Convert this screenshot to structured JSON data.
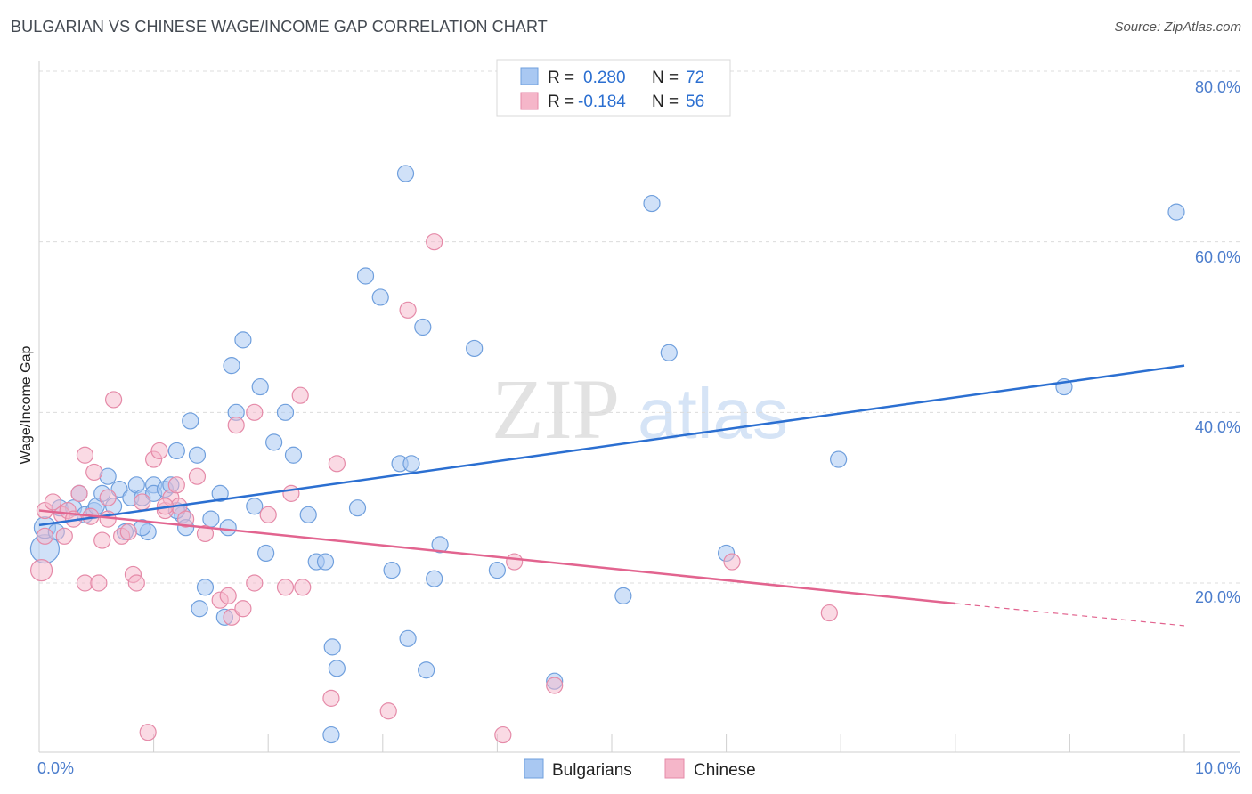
{
  "title": "BULGARIAN VS CHINESE WAGE/INCOME GAP CORRELATION CHART",
  "source": "Source: ZipAtlas.com",
  "watermark": {
    "zip": "ZIP",
    "atlas": "atlas"
  },
  "colors": {
    "blue_fill": "#a9c8f2",
    "blue_stroke": "#6f9fdd",
    "blue_line": "#2b6fd1",
    "pink_fill": "#f5b6c9",
    "pink_stroke": "#e58aa8",
    "pink_line": "#e2648f",
    "tick_text": "#4a7ccc"
  },
  "legend": [
    {
      "r_label": "R =",
      "r_value": "0.280",
      "n_label": "N =",
      "n_value": "72"
    },
    {
      "r_label": "R =",
      "r_value": "-0.184",
      "n_label": "N =",
      "n_value": "56"
    }
  ],
  "chart_data": {
    "type": "scatter",
    "title": "BULGARIAN VS CHINESE WAGE/INCOME GAP CORRELATION CHART",
    "xlabel": "",
    "ylabel": "Wage/Income Gap",
    "xlim": [
      0,
      10
    ],
    "ylim": [
      0,
      80
    ],
    "x_tick_labels": [
      "0.0%",
      "10.0%"
    ],
    "y_tick_labels": [
      "20.0%",
      "40.0%",
      "60.0%",
      "80.0%"
    ],
    "y_ticks": [
      20,
      40,
      60,
      80
    ],
    "series": [
      {
        "name": "Bulgarians",
        "trend": {
          "x": [
            0,
            10
          ],
          "y": [
            26.8,
            45.5
          ]
        },
        "points": [
          [
            0.05,
            24
          ],
          [
            0.05,
            26.5
          ],
          [
            0.15,
            26
          ],
          [
            0.18,
            28.8
          ],
          [
            0.3,
            28.8
          ],
          [
            0.35,
            30.5
          ],
          [
            0.4,
            28
          ],
          [
            0.48,
            28.5
          ],
          [
            0.5,
            29
          ],
          [
            0.55,
            30.5
          ],
          [
            0.65,
            29
          ],
          [
            0.6,
            32.5
          ],
          [
            0.7,
            31
          ],
          [
            0.75,
            26
          ],
          [
            0.8,
            30
          ],
          [
            0.85,
            31.5
          ],
          [
            0.9,
            30
          ],
          [
            0.95,
            26
          ],
          [
            1.0,
            31.5
          ],
          [
            1.0,
            30.5
          ],
          [
            1.1,
            31
          ],
          [
            1.15,
            31.5
          ],
          [
            1.2,
            35.5
          ],
          [
            1.25,
            28
          ],
          [
            1.28,
            26.5
          ],
          [
            1.32,
            39
          ],
          [
            1.38,
            35
          ],
          [
            1.4,
            17
          ],
          [
            1.45,
            19.5
          ],
          [
            1.5,
            27.5
          ],
          [
            1.58,
            30.5
          ],
          [
            1.62,
            16
          ],
          [
            1.65,
            26.5
          ],
          [
            1.68,
            45.5
          ],
          [
            1.72,
            40
          ],
          [
            1.78,
            48.5
          ],
          [
            1.88,
            29
          ],
          [
            1.93,
            43
          ],
          [
            1.98,
            23.5
          ],
          [
            2.05,
            36.5
          ],
          [
            2.15,
            40
          ],
          [
            2.22,
            35
          ],
          [
            2.35,
            28
          ],
          [
            2.42,
            22.5
          ],
          [
            2.5,
            22.5
          ],
          [
            2.56,
            12.5
          ],
          [
            2.6,
            10
          ],
          [
            2.55,
            2.2
          ],
          [
            2.78,
            28.8
          ],
          [
            2.85,
            56
          ],
          [
            2.98,
            53.5
          ],
          [
            3.08,
            21.5
          ],
          [
            3.15,
            34
          ],
          [
            3.2,
            68
          ],
          [
            3.22,
            13.5
          ],
          [
            3.25,
            34
          ],
          [
            3.35,
            50
          ],
          [
            3.38,
            9.8
          ],
          [
            3.45,
            20.5
          ],
          [
            3.5,
            24.5
          ],
          [
            3.8,
            47.5
          ],
          [
            4.0,
            21.5
          ],
          [
            4.5,
            8.5
          ],
          [
            5.1,
            18.5
          ],
          [
            5.35,
            64.5
          ],
          [
            5.5,
            47
          ],
          [
            6.0,
            23.5
          ],
          [
            6.98,
            34.5
          ],
          [
            8.95,
            43
          ],
          [
            9.93,
            63.5
          ],
          [
            0.9,
            26.5
          ],
          [
            1.2,
            28.5
          ]
        ]
      },
      {
        "name": "Chinese",
        "trend": {
          "x": [
            0,
            8.0
          ],
          "y": [
            28.5,
            17.6
          ]
        },
        "trend_dashed": {
          "x": [
            8.0,
            10
          ],
          "y": [
            17.6,
            15.0
          ]
        },
        "points": [
          [
            0.02,
            21.5
          ],
          [
            0.05,
            28.5
          ],
          [
            0.12,
            29.5
          ],
          [
            0.2,
            28
          ],
          [
            0.22,
            25.5
          ],
          [
            0.25,
            28.5
          ],
          [
            0.3,
            27.5
          ],
          [
            0.35,
            30.5
          ],
          [
            0.4,
            20
          ],
          [
            0.4,
            35
          ],
          [
            0.45,
            27.8
          ],
          [
            0.48,
            33
          ],
          [
            0.52,
            20
          ],
          [
            0.55,
            25
          ],
          [
            0.6,
            30
          ],
          [
            0.65,
            41.5
          ],
          [
            0.72,
            25.5
          ],
          [
            0.78,
            26
          ],
          [
            0.82,
            21
          ],
          [
            0.85,
            20
          ],
          [
            0.9,
            29.5
          ],
          [
            0.95,
            2.5
          ],
          [
            1.0,
            34.5
          ],
          [
            1.05,
            35.5
          ],
          [
            1.1,
            28.5
          ],
          [
            1.15,
            30
          ],
          [
            1.2,
            31.5
          ],
          [
            1.22,
            29
          ],
          [
            1.28,
            27.5
          ],
          [
            1.38,
            32.5
          ],
          [
            1.45,
            25.8
          ],
          [
            1.58,
            18
          ],
          [
            1.65,
            18.5
          ],
          [
            1.68,
            16
          ],
          [
            1.72,
            38.5
          ],
          [
            1.78,
            17
          ],
          [
            1.88,
            20
          ],
          [
            1.88,
            40
          ],
          [
            2.0,
            28
          ],
          [
            2.15,
            19.5
          ],
          [
            2.2,
            30.5
          ],
          [
            2.28,
            42
          ],
          [
            2.3,
            19.5
          ],
          [
            2.55,
            6.5
          ],
          [
            2.6,
            34
          ],
          [
            3.05,
            5
          ],
          [
            3.22,
            52
          ],
          [
            3.45,
            60
          ],
          [
            4.05,
            2.2
          ],
          [
            4.15,
            22.5
          ],
          [
            4.5,
            8
          ],
          [
            6.05,
            22.5
          ],
          [
            6.9,
            16.5
          ],
          [
            0.05,
            25.5
          ],
          [
            0.6,
            27.5
          ],
          [
            1.1,
            29
          ]
        ]
      }
    ]
  },
  "bottom_legend": [
    "Bulgarians",
    "Chinese"
  ]
}
